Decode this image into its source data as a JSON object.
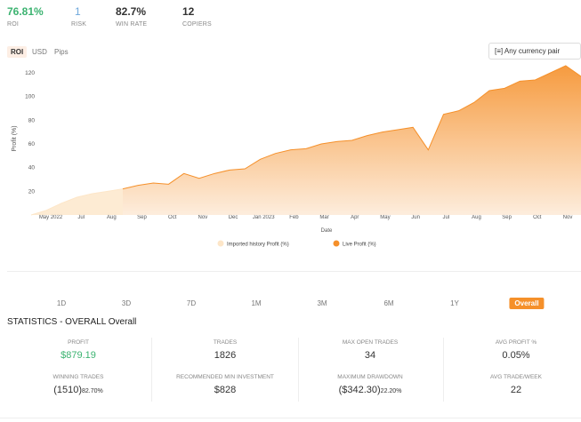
{
  "header": {
    "stats": [
      {
        "value": "76.81%",
        "label": "ROI"
      },
      {
        "value": "1",
        "label": "RISK"
      },
      {
        "value": "82.7%",
        "label": "WIN RATE"
      },
      {
        "value": "12",
        "label": "COPIERS"
      }
    ]
  },
  "tabs": [
    "ROI",
    "USD",
    "Pips"
  ],
  "currency_select": "[≡] Any currency pair",
  "chart": {
    "type": "area",
    "y_label": "Profit (%)",
    "x_label": "Date",
    "ylim": [
      0,
      129
    ],
    "yticks": [
      20,
      40,
      60,
      80,
      100,
      120
    ],
    "xtick_labels": [
      "May 2022",
      "Jul",
      "Aug",
      "Sep",
      "Oct",
      "Nov",
      "Dec",
      "Jan 2023",
      "Feb",
      "Mar",
      "Apr",
      "May",
      "Jun",
      "Jul",
      "Aug",
      "Sep",
      "Oct",
      "Nov"
    ],
    "series": [
      {
        "name": "Imported history Profit (%)",
        "color": "#fde6c8",
        "values": [
          0,
          4,
          10,
          15,
          18,
          20,
          22,
          null,
          null,
          null,
          null,
          null,
          null,
          null,
          null,
          null,
          null,
          null,
          null,
          null,
          null,
          null,
          null,
          null,
          null,
          null,
          null,
          null,
          null,
          null,
          null,
          null,
          null,
          null,
          null,
          null,
          null
        ]
      },
      {
        "name": "Live Profit (%)",
        "color": "#f5902a",
        "values": [
          null,
          null,
          null,
          null,
          null,
          null,
          22,
          25,
          27,
          26,
          35,
          31,
          35,
          38,
          39,
          47,
          52,
          55,
          56,
          60,
          62,
          63,
          67,
          70,
          72,
          74,
          55,
          85,
          88,
          95,
          105,
          107,
          113,
          114,
          120,
          126,
          117
        ]
      }
    ]
  },
  "periods": [
    "1D",
    "3D",
    "7D",
    "1M",
    "3M",
    "6M",
    "1Y",
    "Overall"
  ],
  "statistics": {
    "title": "STATISTICS - OVERALL Overall",
    "items": [
      {
        "label": "PROFIT",
        "value": "$879.19"
      },
      {
        "label": "TRADES",
        "value": "1826"
      },
      {
        "label": "MAX OPEN TRADES",
        "value": "34"
      },
      {
        "label": "AVG PROFIT %",
        "value": "0.05%"
      },
      {
        "label": "WINNING TRADES",
        "value": "(1510)",
        "sub": "82.70%"
      },
      {
        "label": "RECOMMENDED MIN INVESTMENT",
        "value": "$828"
      },
      {
        "label": "MAXIMUM DRAWDOWN",
        "value": "($342.30)",
        "sub": "22.20%"
      },
      {
        "label": "AVG TRADE/WEEK",
        "value": "22"
      }
    ]
  }
}
